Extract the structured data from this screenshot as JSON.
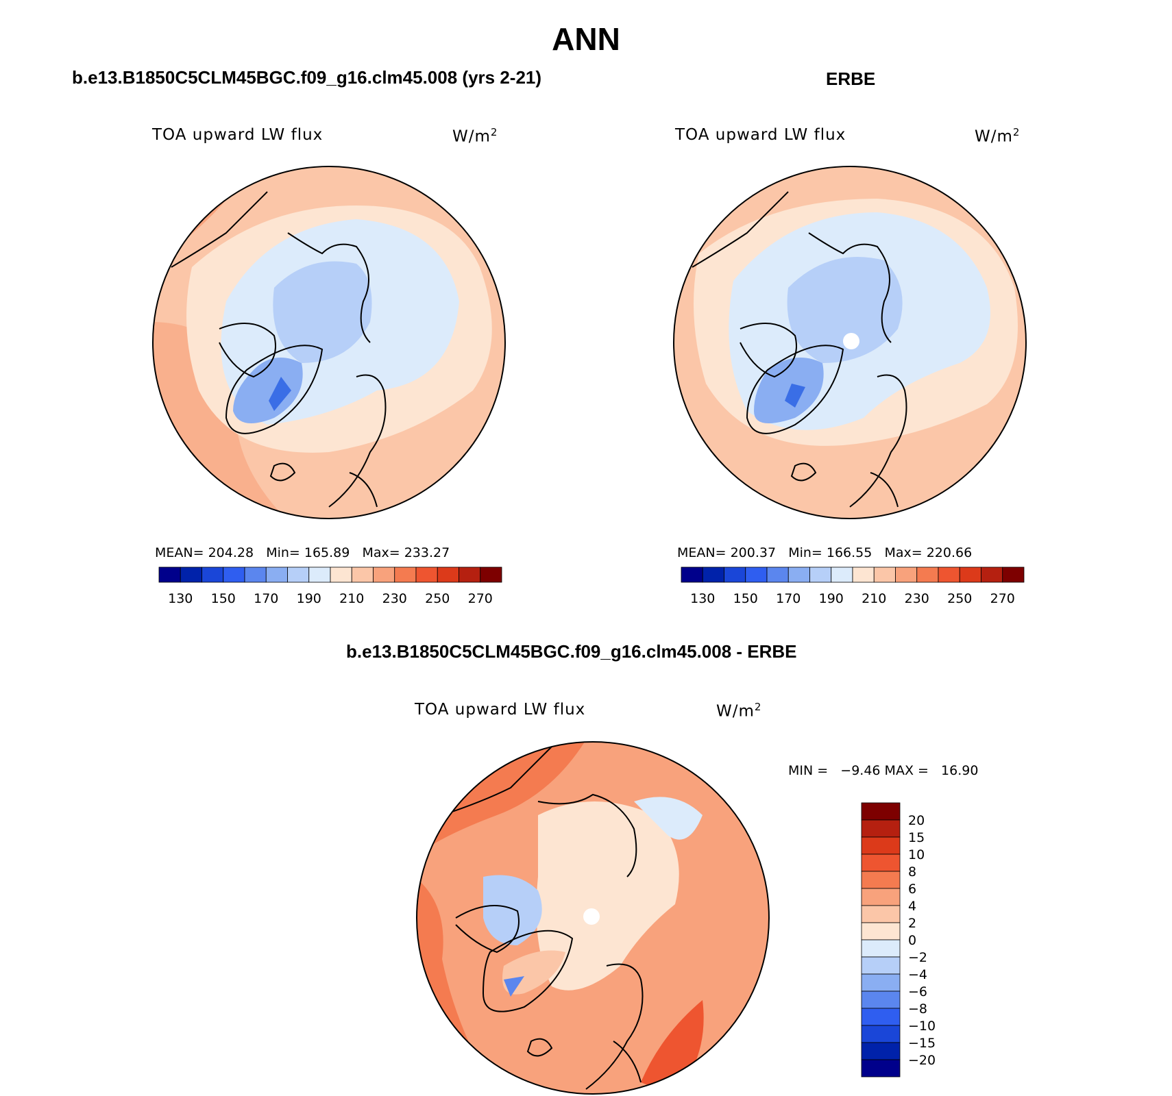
{
  "title": "ANN",
  "panels": [
    {
      "case": "b.e13.B1850C5CLM45BGC.f09_g16.clm45.008 (yrs 2-21)",
      "variable": "TOA upward LW flux",
      "units": "W/m",
      "units_sup": "2",
      "stats": {
        "mean": "MEAN= 204.28",
        "min": "Min= 165.89",
        "max": "Max= 233.27"
      }
    },
    {
      "case": "ERBE",
      "variable": "TOA upward LW flux",
      "units": "W/m",
      "units_sup": "2",
      "stats": {
        "mean": "MEAN= 200.37",
        "min": "Min= 166.55",
        "max": "Max= 220.66"
      }
    }
  ],
  "diff_panel": {
    "case": "b.e13.B1850C5CLM45BGC.f09_g16.clm45.008 - ERBE",
    "variable": "TOA upward LW flux",
    "units": "W/m",
    "units_sup": "2",
    "minmax": "MIN =   −9.46 MAX =   16.90"
  },
  "colorbar_abs": {
    "colors": [
      "#00008b",
      "#0022aa",
      "#1a46d8",
      "#2f5ef0",
      "#5b86ee",
      "#8aaef2",
      "#b6cff8",
      "#dcebfb",
      "#fde5d2",
      "#fbc6a8",
      "#f8a27c",
      "#f47b50",
      "#ee5530",
      "#dc3a1a",
      "#b52010",
      "#7d0000"
    ],
    "tick_labels": [
      "130",
      "150",
      "170",
      "190",
      "210",
      "230",
      "250",
      "270"
    ]
  },
  "colorbar_diff": {
    "colors": [
      "#7d0000",
      "#b52010",
      "#dc3a1a",
      "#ee5530",
      "#f47b50",
      "#f8a27c",
      "#fbc6a8",
      "#fde5d2",
      "#dcebfb",
      "#b6cff8",
      "#8aaef2",
      "#5b86ee",
      "#2f5ef0",
      "#1a46d8",
      "#0022aa",
      "#00008b"
    ],
    "tick_labels": [
      "20",
      "15",
      "10",
      "8",
      "6",
      "4",
      "2",
      "0",
      "−2",
      "−4",
      "−6",
      "−8",
      "−10",
      "−15",
      "−20"
    ]
  }
}
